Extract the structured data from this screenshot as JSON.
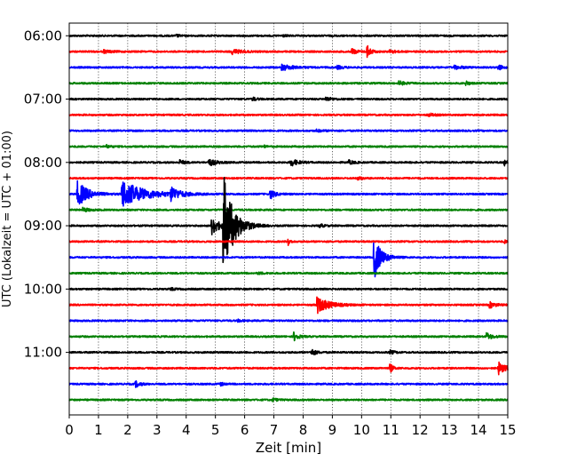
{
  "chart_data": {
    "type": "line",
    "title": "",
    "xlabel": "Zeit  [min]",
    "ylabel": "UTC (Lokalzeit = UTC + 01:00)",
    "xlim": [
      0,
      15
    ],
    "x_ticks": [
      "0",
      "1",
      "2",
      "3",
      "4",
      "5",
      "6",
      "7",
      "8",
      "9",
      "10",
      "11",
      "12",
      "13",
      "14",
      "15"
    ],
    "y_ticks": [
      "06:00",
      "07:00",
      "08:00",
      "09:00",
      "10:00",
      "11:00"
    ],
    "trace_interval_min": 15,
    "grid": "vertical-dotted",
    "colors_cycle": [
      "#000000",
      "#ff0000",
      "#0000ff",
      "#008000"
    ],
    "series": [
      {
        "start": "06:00",
        "color": "#000000",
        "events": [
          {
            "t": 3.7,
            "amp": 1.0,
            "dur": 0.2
          },
          {
            "t": 7.3,
            "amp": 1.0,
            "dur": 0.2
          }
        ]
      },
      {
        "start": "06:15",
        "color": "#ff0000",
        "events": [
          {
            "t": 1.2,
            "amp": 1.5,
            "dur": 0.5
          },
          {
            "t": 5.6,
            "amp": 2.5,
            "dur": 0.6
          },
          {
            "t": 9.7,
            "amp": 3.0,
            "dur": 0.3
          },
          {
            "t": 10.2,
            "amp": 6.5,
            "dur": 0.25
          },
          {
            "t": 11.0,
            "amp": 2.0,
            "dur": 0.3
          }
        ]
      },
      {
        "start": "06:30",
        "color": "#0000ff",
        "events": [
          {
            "t": 7.3,
            "amp": 3.0,
            "dur": 0.8
          },
          {
            "t": 9.2,
            "amp": 1.5,
            "dur": 0.4
          },
          {
            "t": 13.2,
            "amp": 2.0,
            "dur": 0.5
          },
          {
            "t": 14.7,
            "amp": 2.5,
            "dur": 0.3
          }
        ]
      },
      {
        "start": "06:45",
        "color": "#008000",
        "events": [
          {
            "t": 11.3,
            "amp": 2.0,
            "dur": 0.4
          },
          {
            "t": 13.6,
            "amp": 2.0,
            "dur": 0.2
          }
        ]
      },
      {
        "start": "07:00",
        "color": "#000000",
        "events": [
          {
            "t": 6.3,
            "amp": 1.5,
            "dur": 0.3
          },
          {
            "t": 8.8,
            "amp": 2.0,
            "dur": 0.4
          }
        ]
      },
      {
        "start": "07:15",
        "color": "#ff0000",
        "events": [
          {
            "t": 12.3,
            "amp": 1.5,
            "dur": 0.4
          }
        ]
      },
      {
        "start": "07:30",
        "color": "#0000ff",
        "events": [
          {
            "t": 8.5,
            "amp": 1.0,
            "dur": 0.4
          }
        ]
      },
      {
        "start": "07:45",
        "color": "#008000",
        "events": [
          {
            "t": 1.3,
            "amp": 1.5,
            "dur": 0.3
          },
          {
            "t": 6.7,
            "amp": 1.0,
            "dur": 0.2
          }
        ]
      },
      {
        "start": "08:00",
        "color": "#000000",
        "events": [
          {
            "t": 3.8,
            "amp": 2.5,
            "dur": 0.3
          },
          {
            "t": 4.8,
            "amp": 3.5,
            "dur": 0.5
          },
          {
            "t": 7.6,
            "amp": 3.5,
            "dur": 0.5
          },
          {
            "t": 9.6,
            "amp": 2.0,
            "dur": 0.3
          },
          {
            "t": 14.9,
            "amp": 3.0,
            "dur": 0.2
          }
        ]
      },
      {
        "start": "08:15",
        "color": "#ff0000",
        "events": [
          {
            "t": 9.9,
            "amp": 1.5,
            "dur": 0.3
          }
        ]
      },
      {
        "start": "08:30",
        "color": "#0000ff",
        "events": [
          {
            "t": 0.3,
            "amp": 14.0,
            "dur": 0.7
          },
          {
            "t": 1.8,
            "amp": 16.0,
            "dur": 1.5
          },
          {
            "t": 3.5,
            "amp": 7.0,
            "dur": 0.6
          },
          {
            "t": 6.9,
            "amp": 4.5,
            "dur": 0.35
          }
        ]
      },
      {
        "start": "08:45",
        "color": "#008000",
        "events": [
          {
            "t": 0.5,
            "amp": 2.0,
            "dur": 0.4
          }
        ]
      },
      {
        "start": "09:00",
        "color": "#000000",
        "events": [
          {
            "t": 4.9,
            "amp": 9.5,
            "dur": 0.5
          },
          {
            "t": 5.3,
            "amp": 52.0,
            "dur": 0.7
          },
          {
            "t": 8.6,
            "amp": 1.5,
            "dur": 0.3
          }
        ]
      },
      {
        "start": "09:15",
        "color": "#ff0000",
        "events": [
          {
            "t": 7.5,
            "amp": 5.0,
            "dur": 0.1
          },
          {
            "t": 14.9,
            "amp": 1.5,
            "dur": 0.2
          }
        ]
      },
      {
        "start": "09:30",
        "color": "#0000ff",
        "events": [
          {
            "t": 10.45,
            "amp": 22.0,
            "dur": 0.5
          }
        ]
      },
      {
        "start": "09:45",
        "color": "#008000",
        "events": [
          {
            "t": 6.5,
            "amp": 1.0,
            "dur": 0.3
          }
        ]
      },
      {
        "start": "10:00",
        "color": "#000000",
        "events": [
          {
            "t": 3.5,
            "amp": 1.0,
            "dur": 0.3
          }
        ]
      },
      {
        "start": "10:15",
        "color": "#ff0000",
        "events": [
          {
            "t": 8.5,
            "amp": 9.0,
            "dur": 0.8
          },
          {
            "t": 14.4,
            "amp": 3.0,
            "dur": 0.4
          }
        ]
      },
      {
        "start": "10:30",
        "color": "#0000ff",
        "events": [
          {
            "t": 5.8,
            "amp": 1.0,
            "dur": 0.3
          }
        ]
      },
      {
        "start": "10:45",
        "color": "#008000",
        "events": [
          {
            "t": 7.7,
            "amp": 4.5,
            "dur": 0.3
          },
          {
            "t": 14.3,
            "amp": 3.5,
            "dur": 0.4
          }
        ]
      },
      {
        "start": "11:00",
        "color": "#000000",
        "events": [
          {
            "t": 8.3,
            "amp": 3.5,
            "dur": 0.3
          },
          {
            "t": 11.0,
            "amp": 2.0,
            "dur": 0.3
          }
        ]
      },
      {
        "start": "11:15",
        "color": "#ff0000",
        "events": [
          {
            "t": 11.0,
            "amp": 4.0,
            "dur": 0.2
          },
          {
            "t": 14.7,
            "amp": 6.5,
            "dur": 0.5
          }
        ]
      },
      {
        "start": "11:30",
        "color": "#0000ff",
        "events": [
          {
            "t": 2.3,
            "amp": 3.0,
            "dur": 0.3
          },
          {
            "t": 5.2,
            "amp": 1.5,
            "dur": 0.2
          }
        ]
      },
      {
        "start": "11:45",
        "color": "#008000",
        "events": [
          {
            "t": 7.0,
            "amp": 1.5,
            "dur": 0.3
          }
        ]
      }
    ]
  }
}
